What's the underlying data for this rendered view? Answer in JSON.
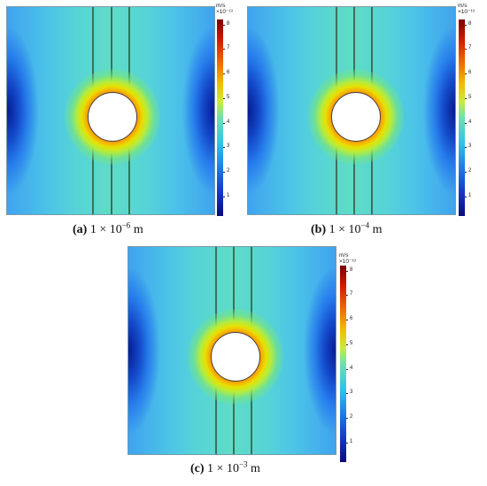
{
  "panels": [
    {
      "label": "(a)",
      "value_text": "1 × 10",
      "exponent": "−6",
      "unit": "m"
    },
    {
      "label": "(b)",
      "value_text": "1 × 10",
      "exponent": "−4",
      "unit": "m"
    },
    {
      "label": "(c)",
      "value_text": "1 × 10",
      "exponent": "−3",
      "unit": "m"
    }
  ],
  "colorbar": {
    "unit": "m/s",
    "scale": "×10⁻¹³",
    "ticks": [
      "8",
      "7",
      "6",
      "5",
      "4",
      "3",
      "2",
      "1"
    ],
    "range": [
      0.2,
      8.2
    ]
  },
  "colors": {
    "band_lines": "#3f6e5a",
    "hot": "#d01800",
    "cold": "#0a0a7a"
  }
}
